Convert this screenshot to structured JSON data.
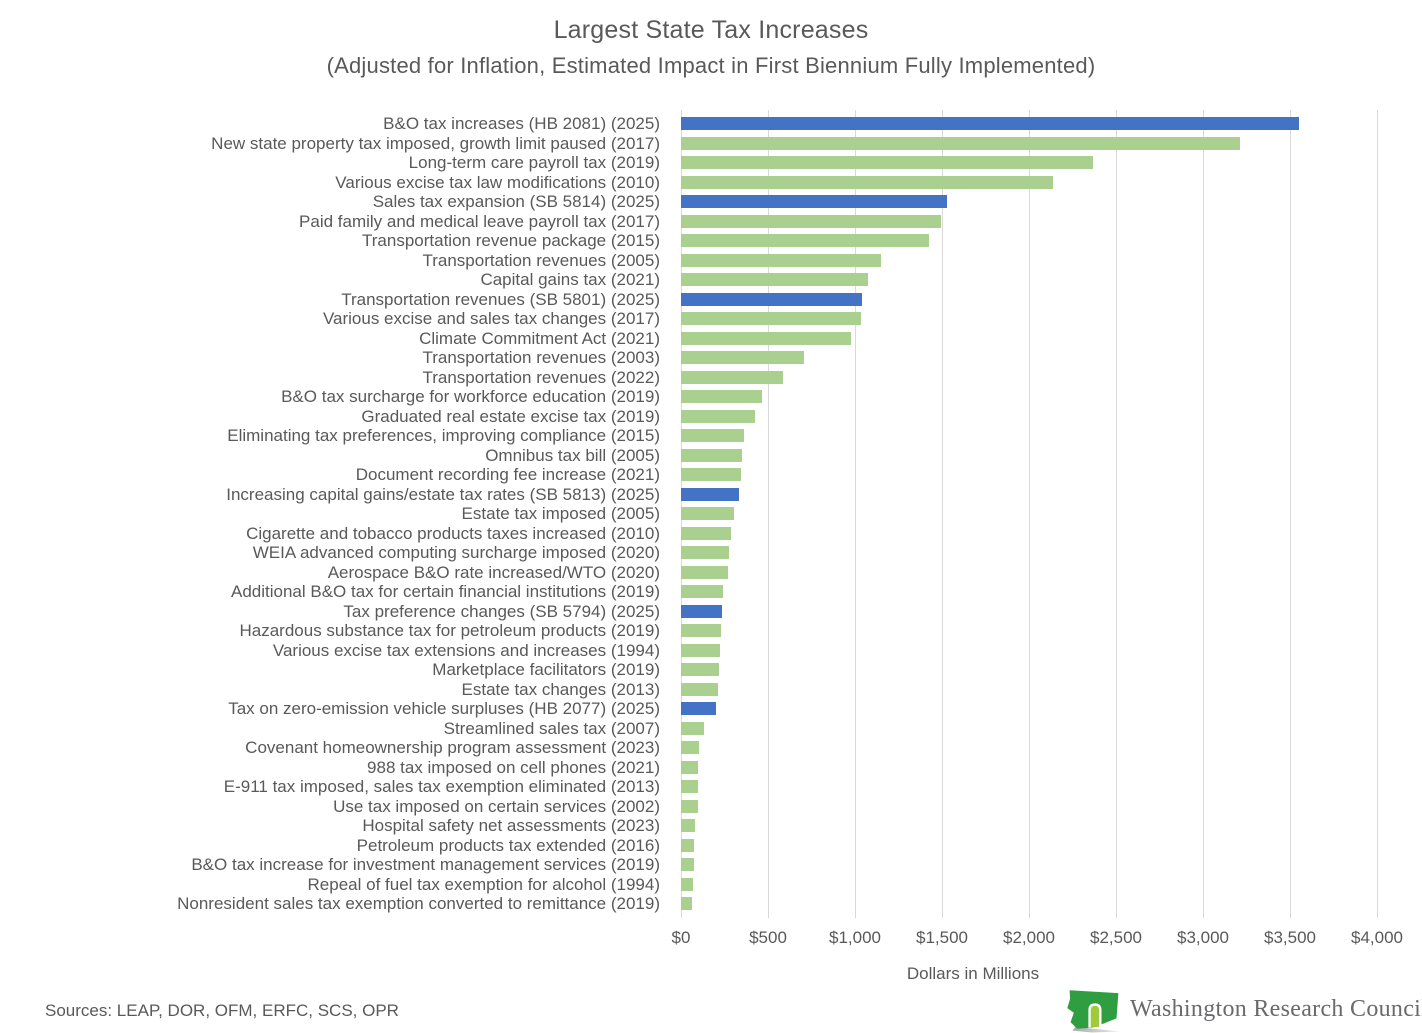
{
  "title": "Largest State Tax Increases",
  "subtitle": "(Adjusted for Inflation, Estimated Impact in First Biennium Fully Implemented)",
  "footer": {
    "sources": "Sources: LEAP, DOR, OFM, ERFC, SCS, OPR",
    "logo_text": "Washington Research Council"
  },
  "chart_data": {
    "type": "bar",
    "orientation": "horizontal",
    "title": "Largest State Tax Increases",
    "subtitle": "(Adjusted for Inflation, Estimated Impact in First Biennium Fully Implemented)",
    "xlabel": "Dollars in Millions",
    "ylabel": "",
    "xlim": [
      0,
      4000
    ],
    "grid": "vertical",
    "x_ticks": [
      "$0",
      "$500",
      "$1,000",
      "$1,500",
      "$2,000",
      "$2,500",
      "$3,000",
      "$3,500",
      "$4,000"
    ],
    "x_tick_values": [
      0,
      500,
      1000,
      1500,
      2000,
      2500,
      3000,
      3500,
      4000
    ],
    "colors": {
      "default": "#A9D08E",
      "highlight_2025_bills": "#4472C4",
      "gridline": "#D9D9D9",
      "text": "#595959"
    },
    "bars": [
      {
        "label": "B&O tax increases (HB 2081) (2025)",
        "value": 3550,
        "highlight": true
      },
      {
        "label": "New state property tax imposed, growth limit paused (2017)",
        "value": 3210,
        "highlight": false
      },
      {
        "label": "Long-term care payroll tax (2019)",
        "value": 2370,
        "highlight": false
      },
      {
        "label": "Various excise tax law modifications (2010)",
        "value": 2140,
        "highlight": false
      },
      {
        "label": "Sales tax expansion (SB 5814) (2025)",
        "value": 1530,
        "highlight": true
      },
      {
        "label": "Paid family and medical leave payroll tax (2017)",
        "value": 1495,
        "highlight": false
      },
      {
        "label": "Transportation revenue package (2015)",
        "value": 1425,
        "highlight": false
      },
      {
        "label": "Transportation revenues (2005)",
        "value": 1150,
        "highlight": false
      },
      {
        "label": "Capital gains tax (2021)",
        "value": 1075,
        "highlight": false
      },
      {
        "label": "Transportation revenues (SB 5801) (2025)",
        "value": 1040,
        "highlight": true
      },
      {
        "label": "Various excise and sales tax changes (2017)",
        "value": 1035,
        "highlight": false
      },
      {
        "label": "Climate Commitment Act (2021)",
        "value": 975,
        "highlight": false
      },
      {
        "label": "Transportation revenues (2003)",
        "value": 705,
        "highlight": false
      },
      {
        "label": "Transportation revenues (2022)",
        "value": 585,
        "highlight": false
      },
      {
        "label": "B&O tax surcharge for workforce education (2019)",
        "value": 465,
        "highlight": false
      },
      {
        "label": "Graduated real estate excise tax (2019)",
        "value": 425,
        "highlight": false
      },
      {
        "label": "Eliminating tax preferences, improving compliance (2015)",
        "value": 360,
        "highlight": false
      },
      {
        "label": "Omnibus tax bill (2005)",
        "value": 350,
        "highlight": false
      },
      {
        "label": "Document recording fee increase (2021)",
        "value": 345,
        "highlight": false
      },
      {
        "label": "Increasing capital gains/estate tax rates (SB 5813) (2025)",
        "value": 335,
        "highlight": true
      },
      {
        "label": "Estate tax imposed (2005)",
        "value": 305,
        "highlight": false
      },
      {
        "label": "Cigarette and tobacco products taxes increased (2010)",
        "value": 285,
        "highlight": false
      },
      {
        "label": "WEIA advanced computing surcharge imposed (2020)",
        "value": 275,
        "highlight": false
      },
      {
        "label": "Aerospace B&O rate increased/WTO (2020)",
        "value": 270,
        "highlight": false
      },
      {
        "label": "Additional B&O tax for certain financial institutions (2019)",
        "value": 240,
        "highlight": false
      },
      {
        "label": "Tax preference changes (SB 5794) (2025)",
        "value": 235,
        "highlight": true
      },
      {
        "label": "Hazardous substance tax for petroleum products (2019)",
        "value": 230,
        "highlight": false
      },
      {
        "label": "Various excise tax extensions and increases (1994)",
        "value": 225,
        "highlight": false
      },
      {
        "label": "Marketplace facilitators (2019)",
        "value": 220,
        "highlight": false
      },
      {
        "label": "Estate tax changes (2013)",
        "value": 215,
        "highlight": false
      },
      {
        "label": "Tax on zero-emission vehicle surpluses (HB 2077) (2025)",
        "value": 200,
        "highlight": true
      },
      {
        "label": "Streamlined sales tax (2007)",
        "value": 135,
        "highlight": false
      },
      {
        "label": "Covenant homeownership program assessment (2023)",
        "value": 105,
        "highlight": false
      },
      {
        "label": "988 tax  imposed on cell phones (2021)",
        "value": 100,
        "highlight": false
      },
      {
        "label": "E-911 tax imposed, sales tax exemption eliminated (2013)",
        "value": 98,
        "highlight": false
      },
      {
        "label": "Use tax imposed on certain services (2002)",
        "value": 95,
        "highlight": false
      },
      {
        "label": "Hospital safety net assessments (2023)",
        "value": 80,
        "highlight": false
      },
      {
        "label": "Petroleum products tax extended (2016)",
        "value": 75,
        "highlight": false
      },
      {
        "label": "B&O tax increase for investment management services (2019)",
        "value": 72,
        "highlight": false
      },
      {
        "label": "Repeal of fuel tax exemption for alcohol (1994)",
        "value": 70,
        "highlight": false
      },
      {
        "label": "Nonresident sales tax exemption converted to remittance (2019)",
        "value": 65,
        "highlight": false
      }
    ]
  }
}
